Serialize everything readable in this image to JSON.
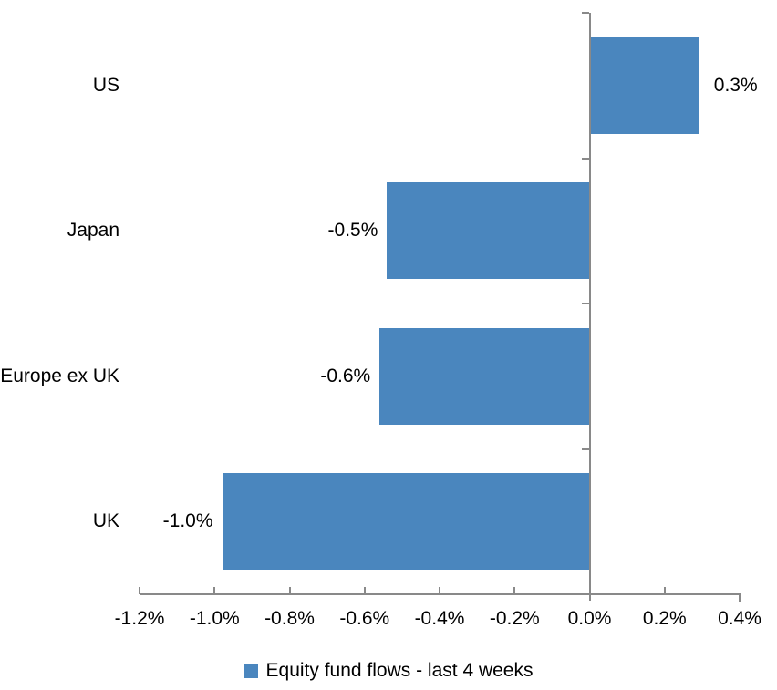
{
  "chart_data": {
    "type": "bar",
    "orientation": "horizontal",
    "title": "",
    "xlabel": "",
    "ylabel": "",
    "categories": [
      "US",
      "Japan",
      "Europe ex UK",
      "UK"
    ],
    "values": [
      0.3,
      -0.5,
      -0.6,
      -1.0
    ],
    "value_labels": [
      "0.3%",
      "-0.5%",
      "-0.6%",
      "-1.0%"
    ],
    "bar_length_estimates_pct": [
      0.29,
      -0.54,
      -0.56,
      -0.98
    ],
    "xlim": [
      -1.2,
      0.4
    ],
    "x_tick_step": 0.2,
    "x_tick_labels": [
      "-1.2%",
      "-1.0%",
      "-0.8%",
      "-0.6%",
      "-0.4%",
      "-0.2%",
      "0.0%",
      "0.2%",
      "0.4%"
    ],
    "grid": false,
    "legend": {
      "position": "bottom",
      "entries": [
        {
          "label": "Equity fund flows - last 4 weeks",
          "marker": "square",
          "color": "#4A86BE"
        }
      ]
    },
    "colors": {
      "bar": "#4A86BE",
      "axis": "#898989",
      "text": "#000000",
      "background": "#FFFFFF"
    }
  }
}
